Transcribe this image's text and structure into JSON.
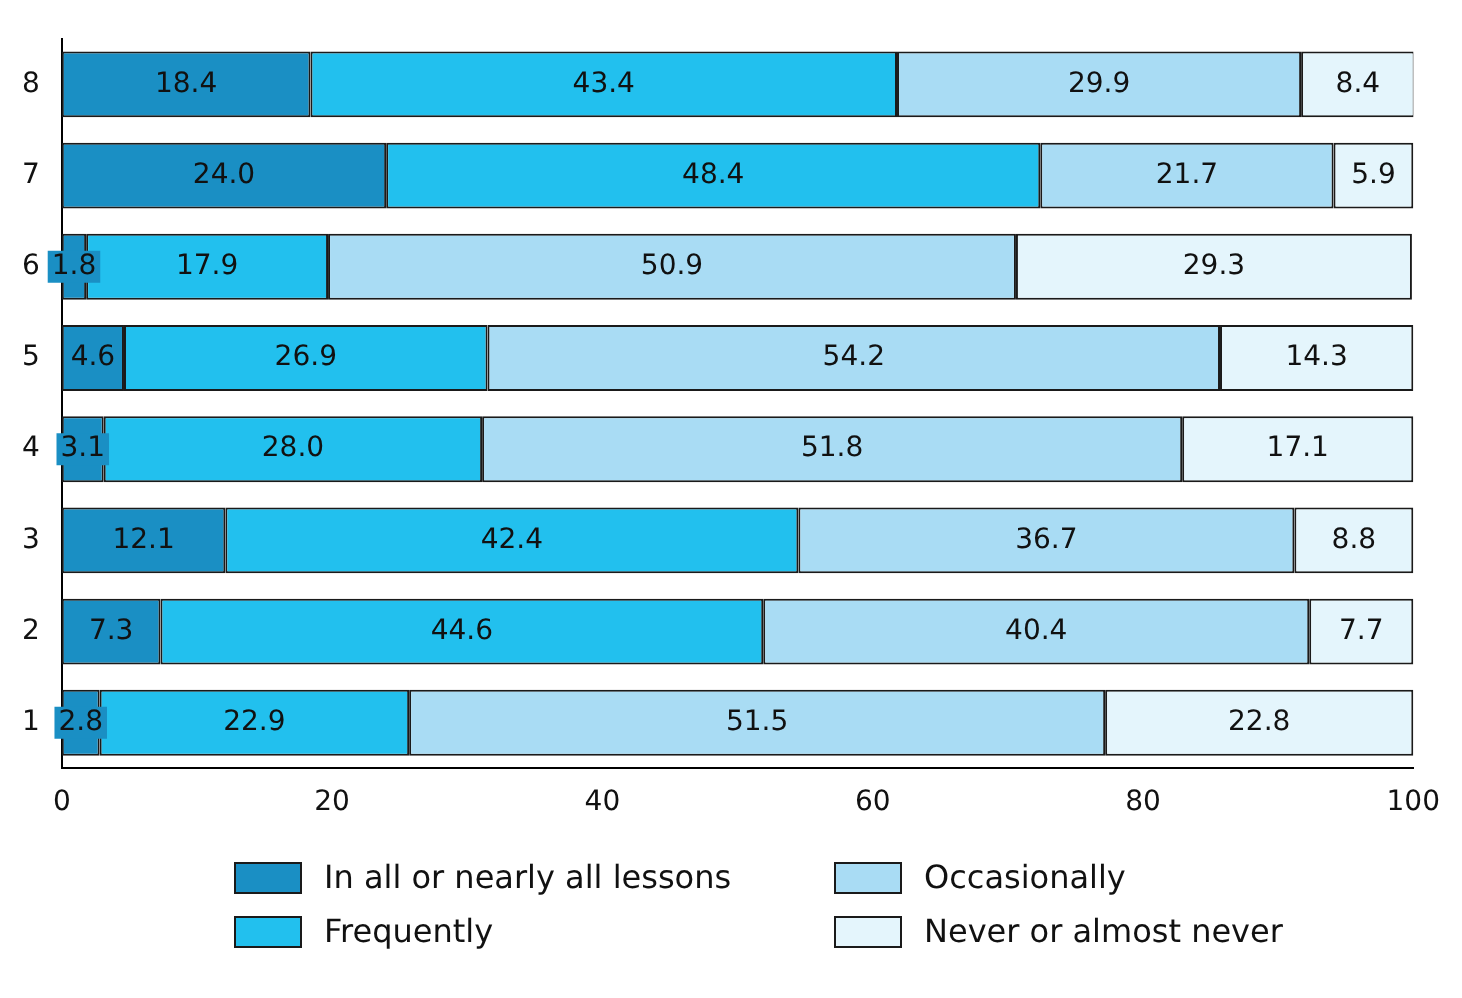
{
  "chart_data": {
    "type": "bar",
    "orientation": "horizontal",
    "stacked": true,
    "categories": [
      "8",
      "7",
      "6",
      "5",
      "4",
      "3",
      "2",
      "1"
    ],
    "xlim": [
      0,
      100
    ],
    "xticks": [
      0,
      20,
      40,
      60,
      80,
      100
    ],
    "grid": false,
    "legend": "bottom",
    "series": [
      {
        "name": "In all or nearly all lessons",
        "color": "#1a8fc4",
        "values": [
          18.4,
          24.0,
          1.8,
          4.6,
          3.1,
          12.1,
          7.3,
          2.8
        ],
        "value_labels": [
          "18.4",
          "24.0",
          "1.8",
          "4.6",
          "3.1",
          "12.1",
          "7.3",
          "2.8"
        ]
      },
      {
        "name": "Frequently",
        "color": "#22c0ee",
        "values": [
          43.4,
          48.4,
          17.9,
          26.9,
          28.0,
          42.4,
          44.6,
          22.9
        ],
        "value_labels": [
          "43.4",
          "48.4",
          "17.9",
          "26.9",
          "28.0",
          "42.4",
          "44.6",
          "22.9"
        ]
      },
      {
        "name": "Occasionally",
        "color": "#a9dcf4",
        "values": [
          29.9,
          21.7,
          50.9,
          54.2,
          51.8,
          36.7,
          40.4,
          51.5
        ],
        "value_labels": [
          "29.9",
          "21.7",
          "50.9",
          "54.2",
          "51.8",
          "36.7",
          "40.4",
          "51.5"
        ]
      },
      {
        "name": "Never or almost never",
        "color": "#e4f5fc",
        "values": [
          8.4,
          5.9,
          29.3,
          14.3,
          17.1,
          8.8,
          7.7,
          22.8
        ],
        "value_labels": [
          "8.4",
          "5.9",
          "29.3",
          "14.3",
          "17.1",
          "8.8",
          "7.7",
          "22.8"
        ]
      }
    ]
  }
}
